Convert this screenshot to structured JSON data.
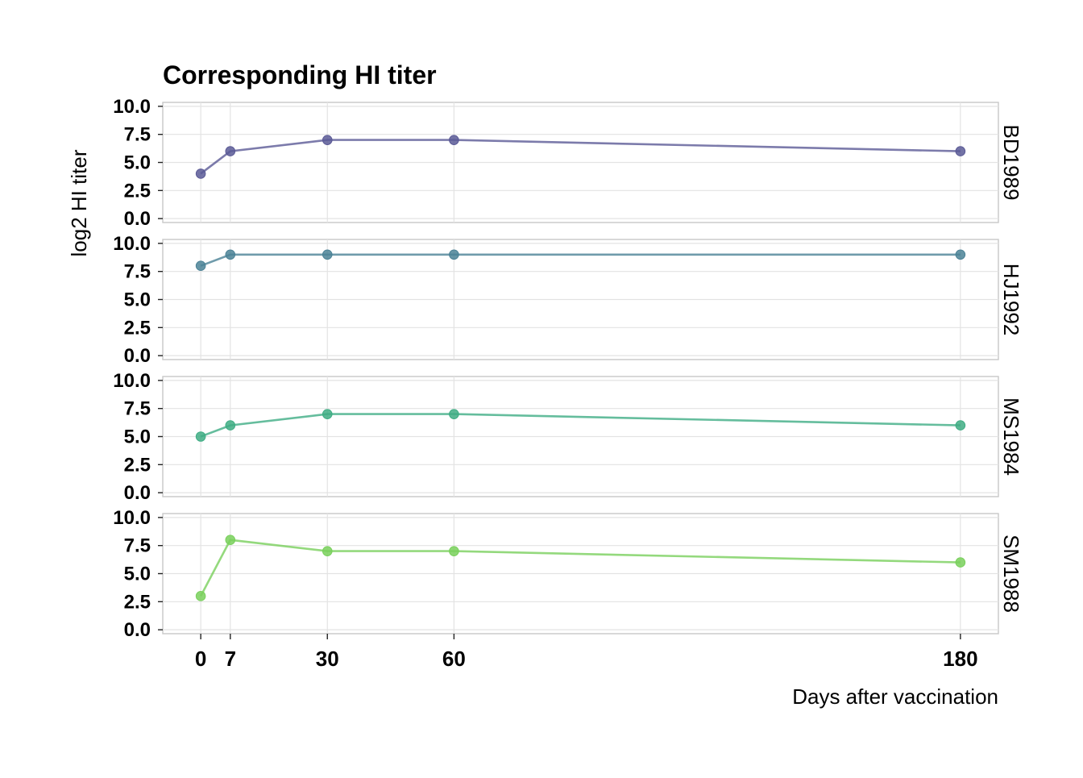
{
  "chart_data": {
    "type": "line",
    "title": "Corresponding HI titer",
    "xlabel": "Days after vaccination",
    "ylabel": "log2 HI titer",
    "x": [
      0,
      7,
      30,
      60,
      180
    ],
    "x_ticks": [
      0,
      7,
      30,
      60,
      180
    ],
    "x_tick_labels": [
      "0",
      "7",
      "30",
      "60",
      "180"
    ],
    "xlim": [
      -9,
      189
    ],
    "ylim": [
      0,
      10
    ],
    "y_ticks": [
      0,
      2.5,
      5,
      7.5,
      10
    ],
    "y_tick_labels": [
      "0.0",
      "2.5",
      "5.0",
      "7.5",
      "10.0"
    ],
    "grid": true,
    "legend": "none",
    "facet": "rows",
    "series": [
      {
        "name": "BD1989",
        "values": [
          4,
          6,
          7,
          7,
          6
        ],
        "color": "#5b5a96"
      },
      {
        "name": "HJ1992",
        "values": [
          8,
          9,
          9,
          9,
          9
        ],
        "color": "#4b8296"
      },
      {
        "name": "MS1984",
        "values": [
          5,
          6,
          7,
          7,
          6
        ],
        "color": "#3fad84"
      },
      {
        "name": "SM1988",
        "values": [
          3,
          8,
          7,
          7,
          6
        ],
        "color": "#79d05c"
      }
    ]
  }
}
